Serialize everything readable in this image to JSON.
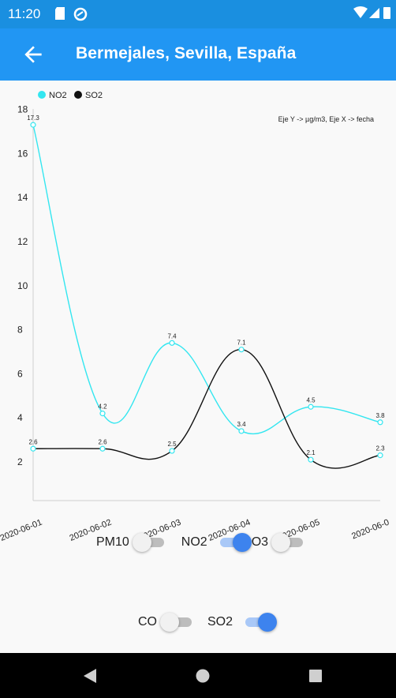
{
  "status_bar": {
    "time": "11:20"
  },
  "app_bar": {
    "title": "Bermejales, Sevilla, España"
  },
  "chart_data": {
    "type": "line",
    "legend_placement": "top-left",
    "annotation": "Eje Y -> µg/m3, Eje X -> fecha",
    "categories": [
      "2020-06-01",
      "2020-06-02",
      "2020-06-03",
      "2020-06-04",
      "2020-06-05",
      "2020-06-0"
    ],
    "y_ticks": [
      "2",
      "4",
      "6",
      "8",
      "10",
      "12",
      "14",
      "16",
      "18"
    ],
    "series": [
      {
        "name": "NO2",
        "color": "#33e6f0",
        "values": [
          17.3,
          4.2,
          7.4,
          3.4,
          4.5,
          3.8
        ],
        "labels": [
          "17.3",
          "4.2",
          "7.4",
          "3.4",
          "4.5",
          "3.8"
        ]
      },
      {
        "name": "SO2",
        "color": "#111111",
        "values": [
          2.6,
          2.6,
          2.5,
          7.1,
          2.1,
          2.3
        ],
        "labels": [
          "2.6",
          "2.6",
          "2.5",
          "7.1",
          "2.1",
          "2.3"
        ]
      }
    ]
  },
  "toggles": {
    "pm10": {
      "label": "PM10",
      "on": false
    },
    "no2": {
      "label": "NO2",
      "on": true
    },
    "o3": {
      "label": "O3",
      "on": false
    },
    "co": {
      "label": "CO",
      "on": false
    },
    "so2": {
      "label": "SO2",
      "on": true
    }
  }
}
